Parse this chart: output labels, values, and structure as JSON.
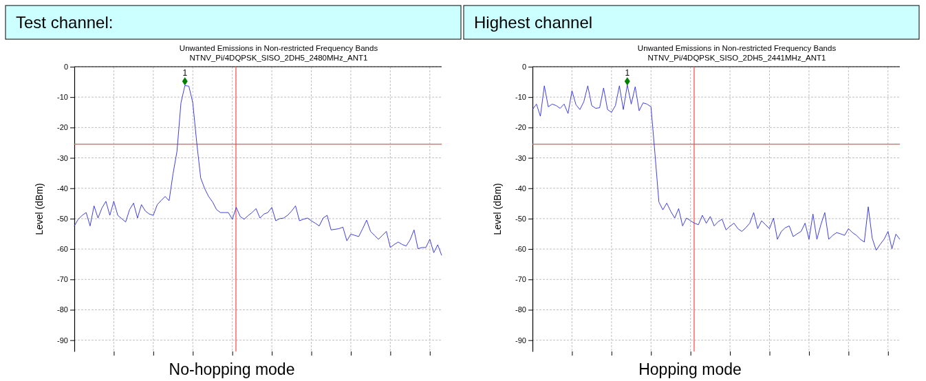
{
  "chart_data": [
    {
      "type": "line",
      "title": "Unwanted Emissions in Non-restricted Frequency Bands",
      "subtitle": "NTNV_Pi/4DQPSK_SISO_2DH5_2480MHz_ANT1",
      "xlabel": "No-hopping mode",
      "ylabel": "Level (dBm)",
      "annotations": [
        "Test channel:",
        {
          "text": "1",
          "y": -4.8
        }
      ],
      "categories": [
        null,
        null,
        null,
        null,
        null,
        null,
        null,
        null,
        null,
        null,
        null,
        null,
        null,
        null,
        null,
        null,
        null,
        null,
        null,
        null,
        null,
        null,
        null,
        null,
        null,
        null,
        null,
        null,
        null,
        null,
        null,
        null,
        null,
        null,
        null,
        null,
        null,
        null,
        null,
        null,
        null,
        null,
        null,
        null,
        null,
        null,
        null,
        null,
        null,
        null,
        null,
        null,
        null,
        null,
        null,
        null,
        null,
        null,
        null,
        null,
        null,
        null,
        null,
        null,
        null,
        null,
        null,
        null,
        null,
        null,
        null,
        null,
        null,
        null,
        null,
        null,
        null,
        null,
        null,
        null,
        null,
        null,
        null,
        null,
        null,
        null,
        null,
        null,
        null,
        null,
        null,
        null,
        null,
        null
      ],
      "ylim": [
        -93.7,
        0
      ],
      "yticks": [
        0,
        -10,
        -20,
        -30,
        -40,
        -50,
        -60,
        -70,
        -80,
        -90
      ],
      "grid": true,
      "ref_lines": [
        {
          "axis": "y",
          "value": -25.5,
          "color": "#ff5050"
        }
      ],
      "series": [
        {
          "color": "#2828e6",
          "values": [
            -52.4,
            -50.2,
            -48.9,
            -48.0,
            -52.4,
            -45.8,
            -49.8,
            -46.5,
            -44.3,
            -48.9,
            -44.3,
            -48.9,
            -50.0,
            -51.1,
            -47.0,
            -44.9,
            -49.8,
            -45.4,
            -47.5,
            -48.5,
            -48.9,
            -45.4,
            -44.0,
            -42.7,
            -44.1,
            -35.2,
            -27.8,
            -11.9,
            -6.2,
            -6.4,
            -11.9,
            -25.1,
            -36.6,
            -40.1,
            -42.7,
            -44.5,
            -47.0,
            -48.0,
            -48.0,
            -48.0,
            -50.2,
            -46.3,
            -49.3,
            -50.2,
            -49.0,
            -48.0,
            -46.7,
            -49.8,
            -48.5,
            -48.0,
            -46.3,
            -50.7,
            -50.0,
            -49.8,
            -48.9,
            -47.5,
            -45.8,
            -50.7,
            -50.2,
            -49.8,
            -50.7,
            -51.5,
            -52.4,
            -49.8,
            -48.9,
            -53.7,
            -53.5,
            -53.3,
            -52.8,
            -57.3,
            -55.1,
            -55.5,
            -55.9,
            -53.3,
            -50.5,
            -54.2,
            -55.5,
            -56.8,
            -55.5,
            -54.2,
            -59.5,
            -58.5,
            -57.7,
            -58.5,
            -59.0,
            -57.0,
            -53.7,
            -59.9,
            -59.5,
            -59.5,
            -56.8,
            -61.2,
            -58.6,
            -62.1
          ]
        }
      ]
    },
    {
      "type": "line",
      "title": "Unwanted Emissions in Non-restricted Frequency Bands",
      "subtitle": "NTNV_Pi/4DQPSK_SISO_2DH5_2441MHz_ANT1",
      "xlabel": "Hopping mode",
      "ylabel": "Level (dBm)",
      "annotations": [
        "Highest channel",
        {
          "text": "1",
          "y": -4.8
        }
      ],
      "categories": [
        null,
        null,
        null,
        null,
        null,
        null,
        null,
        null,
        null,
        null,
        null,
        null,
        null,
        null,
        null,
        null,
        null,
        null,
        null,
        null,
        null,
        null,
        null,
        null,
        null,
        null,
        null,
        null,
        null,
        null,
        null,
        null,
        null,
        null,
        null,
        null,
        null,
        null,
        null,
        null,
        null,
        null,
        null,
        null,
        null,
        null,
        null,
        null,
        null,
        null,
        null,
        null,
        null,
        null,
        null,
        null,
        null,
        null,
        null,
        null,
        null,
        null,
        null,
        null,
        null,
        null,
        null,
        null,
        null,
        null,
        null,
        null,
        null,
        null,
        null,
        null,
        null,
        null,
        null,
        null,
        null,
        null,
        null,
        null,
        null,
        null,
        null,
        null,
        null,
        null,
        null,
        null,
        null,
        null
      ],
      "ylim": [
        -93.7,
        0
      ],
      "yticks": [
        0,
        -10,
        -20,
        -30,
        -40,
        -50,
        -60,
        -70,
        -80,
        -90
      ],
      "grid": true,
      "ref_lines": [
        {
          "axis": "y",
          "value": -25.5,
          "color": "#ff5050"
        }
      ],
      "series": [
        {
          "color": "#2828e6",
          "values": [
            -14.1,
            -12.3,
            -16.3,
            -6.3,
            -13.2,
            -12.3,
            -12.8,
            -13.7,
            -12.3,
            -15.4,
            -7.9,
            -12.5,
            -14.1,
            -11.5,
            -6.3,
            -12.8,
            -13.7,
            -13.5,
            -7.0,
            -14.1,
            -15.0,
            -12.8,
            -6.3,
            -14.1,
            -6.0,
            -12.3,
            -6.6,
            -14.5,
            -11.9,
            -12.3,
            -13.2,
            -28.6,
            -44.5,
            -47.1,
            -44.9,
            -47.6,
            -49.8,
            -46.7,
            -52.4,
            -49.8,
            -50.7,
            -51.5,
            -52.0,
            -48.9,
            -51.5,
            -49.3,
            -52.4,
            -51.0,
            -50.2,
            -53.7,
            -52.5,
            -51.5,
            -53.3,
            -54.2,
            -53.0,
            -51.5,
            -48.0,
            -53.3,
            -50.7,
            -52.0,
            -53.3,
            -49.8,
            -56.8,
            -54.2,
            -53.0,
            -52.4,
            -55.9,
            -55.0,
            -54.2,
            -51.5,
            -56.8,
            -48.5,
            -56.8,
            -52.0,
            -48.0,
            -56.8,
            -55.5,
            -54.6,
            -55.0,
            -55.5,
            -53.3,
            -54.6,
            -55.5,
            -56.8,
            -57.7,
            -46.1,
            -56.4,
            -60.4,
            -58.5,
            -56.8,
            -54.2,
            -59.9,
            -55.1,
            -56.8
          ]
        }
      ]
    }
  ]
}
